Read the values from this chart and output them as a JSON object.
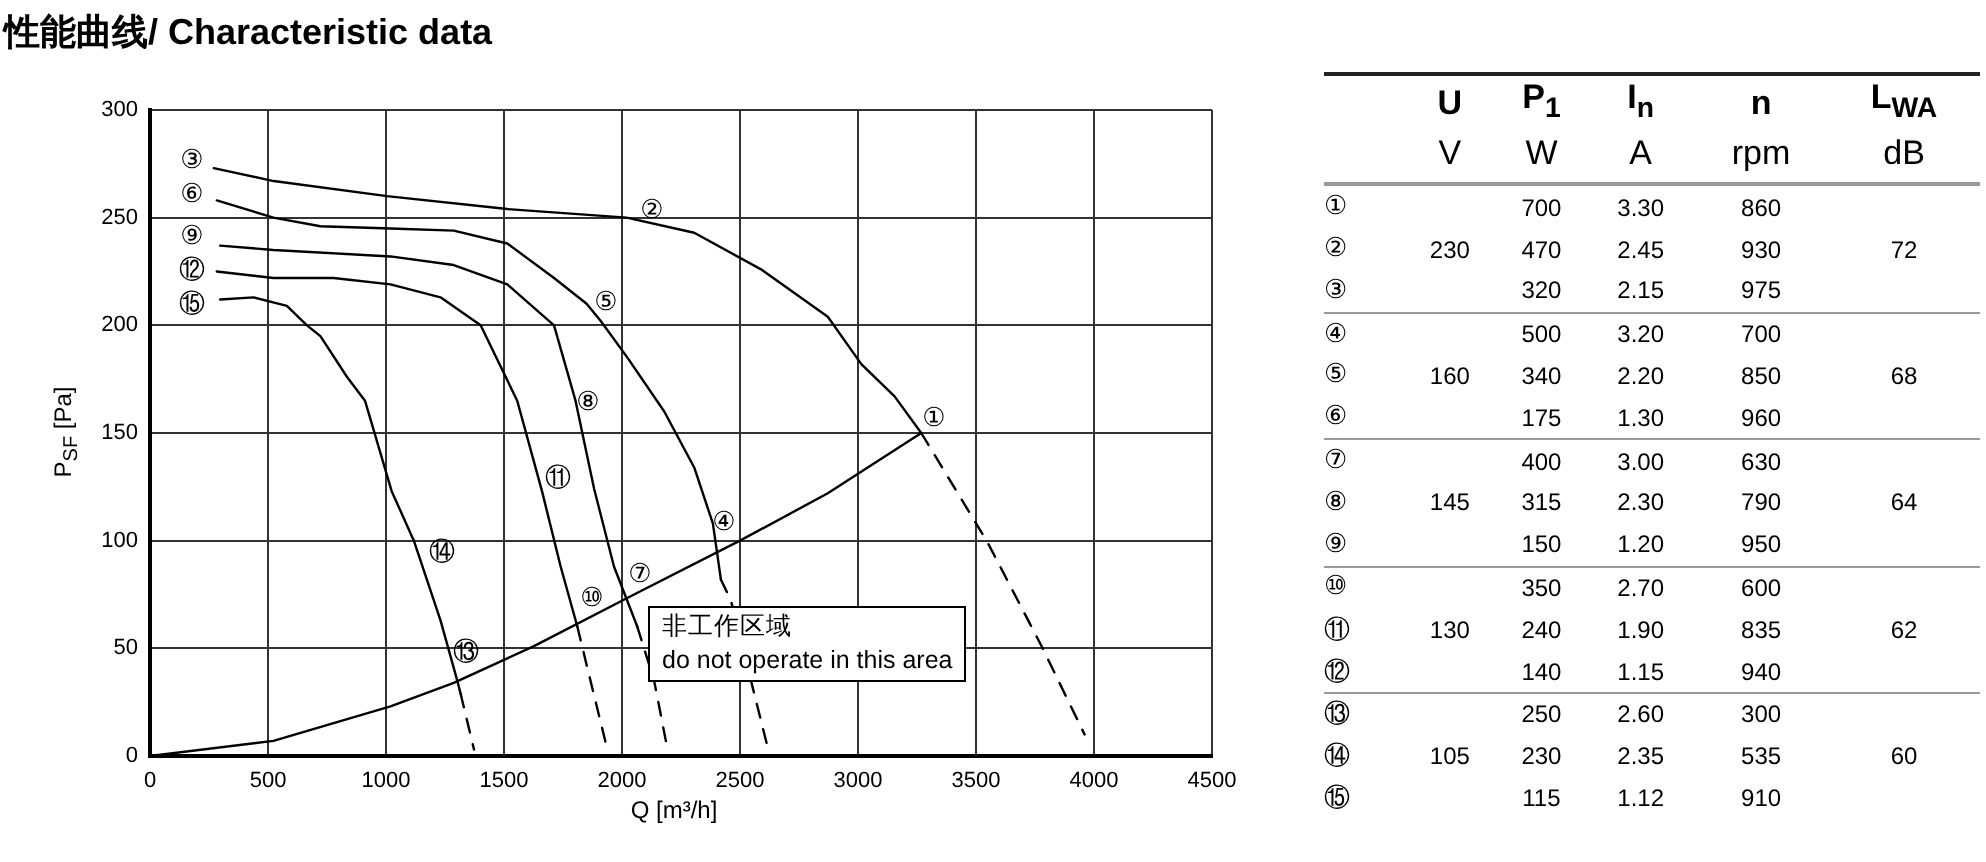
{
  "chart_data": [
    {
      "type": "line",
      "title": "性能曲线/ Characteristic data",
      "xlabel": "Q [m³/h]",
      "ylabel": "P$_{SF}$ [Pa]",
      "xlim": [
        0,
        4500
      ],
      "xticks": [
        0,
        500,
        1000,
        1500,
        2000,
        2500,
        3000,
        3500,
        4000,
        4500
      ],
      "ylim": [
        0,
        300
      ],
      "yticks": [
        0,
        50,
        100,
        150,
        200,
        250,
        300
      ],
      "grid": true,
      "legend": false,
      "marker": "none",
      "line_style": "solid",
      "series": [
        {
          "color": "#000000",
          "x": [
            270,
            524,
            1004,
            1514,
            2020,
            2306,
            2589,
            2872,
            3014,
            3155,
            3268
          ],
          "values": [
            273,
            267,
            260,
            254,
            250,
            243,
            226,
            204,
            182,
            167,
            150
          ]
        },
        {
          "color": "#000000",
          "line_style": "dashed",
          "x": [
            3268,
            3550,
            3778,
            3960
          ],
          "values": [
            150,
            99,
            51,
            10
          ]
        },
        {
          "color": "#000000",
          "x": [
            283,
            523,
            722,
            1019,
            1287,
            1514,
            1712,
            1850,
            1910,
            2023,
            2179,
            2306,
            2385,
            2419
          ],
          "values": [
            258,
            250,
            246,
            245,
            244,
            238,
            222,
            210,
            202,
            185,
            160,
            134,
            108,
            82
          ]
        },
        {
          "color": "#000000",
          "line_style": "dashed",
          "x": [
            2419,
            2462,
            2615
          ],
          "values": [
            82,
            72,
            5
          ]
        },
        {
          "color": "#000000",
          "x": [
            297,
            523,
            1019,
            1287,
            1514,
            1712,
            1803,
            1882,
            1966,
            2065
          ],
          "values": [
            237,
            235,
            232,
            228,
            219,
            200,
            165,
            124,
            88,
            60
          ]
        },
        {
          "color": "#000000",
          "line_style": "dashed",
          "x": [
            2065,
            2136,
            2193
          ],
          "values": [
            60,
            35,
            3
          ]
        },
        {
          "color": "#000000",
          "x": [
            283,
            523,
            778,
            1019,
            1231,
            1401,
            1556,
            1661,
            1740,
            1811
          ],
          "values": [
            225,
            222,
            222,
            219,
            213,
            200,
            165,
            123,
            88,
            60
          ]
        },
        {
          "color": "#000000",
          "line_style": "dashed",
          "x": [
            1811,
            1853,
            1938
          ],
          "values": [
            60,
            41,
            3
          ]
        },
        {
          "color": "#000000",
          "x": [
            297,
            439,
            580,
            665,
            722,
            835,
            911,
            1024,
            1118,
            1231,
            1302,
            1316
          ],
          "values": [
            212,
            213,
            209,
            200,
            195,
            176,
            165,
            123,
            100,
            63,
            35,
            29
          ]
        },
        {
          "color": "#000000",
          "line_style": "dashed",
          "x": [
            1316,
            1373
          ],
          "values": [
            29,
            3
          ]
        },
        {
          "color": "#000000",
          "x": [
            0,
            523,
            1019,
            1287,
            1627,
            2051,
            2500,
            2872,
            3268
          ],
          "values": [
            0,
            7,
            23,
            34,
            51,
            75,
            100,
            122,
            150
          ]
        }
      ],
      "annotations": [
        "①",
        "②",
        "③",
        "④",
        "⑤",
        "⑥",
        "⑦",
        "⑧",
        "⑨",
        "⑩",
        "⑪",
        "⑫",
        "⑬",
        "⑭",
        "⑮",
        "非工作区域\ndo not operate in this area"
      ]
    },
    {
      "type": "other",
      "data_labels": true,
      "categories": [
        "①",
        "②",
        "③",
        "④",
        "⑤",
        "⑥",
        "⑦",
        "⑧",
        "⑨",
        "⑩",
        "⑪",
        "⑫",
        "⑬",
        "⑭",
        "⑮"
      ],
      "annotations": [
        "V",
        "W",
        "A",
        "rpm",
        "dB"
      ],
      "series": [
        {
          "name": "U",
          "values": [
            null,
            230,
            null,
            null,
            160,
            null,
            null,
            145,
            null,
            null,
            130,
            null,
            null,
            105,
            null
          ]
        },
        {
          "name": "P$_{1}$",
          "values": [
            700,
            470,
            320,
            500,
            340,
            175,
            400,
            315,
            150,
            350,
            240,
            140,
            250,
            230,
            115
          ]
        },
        {
          "name": "I$_{n}$",
          "values": [
            3.3,
            2.45,
            2.15,
            3.2,
            2.2,
            1.3,
            3,
            2.3,
            1.2,
            2.7,
            1.9,
            1.15,
            2.6,
            2.35,
            1.12
          ],
          "value_labels": [
            "3.30",
            "2.45",
            "2.15",
            "3.20",
            "2.20",
            "1.30",
            "3.00",
            "2.30",
            "1.20",
            "2.70",
            "1.90",
            "1.15",
            "2.60",
            "2.35",
            "1.12"
          ]
        },
        {
          "name": "n",
          "values": [
            860,
            930,
            975,
            700,
            850,
            960,
            630,
            790,
            950,
            600,
            835,
            940,
            300,
            535,
            910
          ]
        },
        {
          "name": "L$_{WA}$",
          "values": [
            null,
            72,
            null,
            null,
            68,
            null,
            null,
            64,
            null,
            null,
            62,
            null,
            null,
            60,
            null
          ]
        }
      ]
    }
  ]
}
